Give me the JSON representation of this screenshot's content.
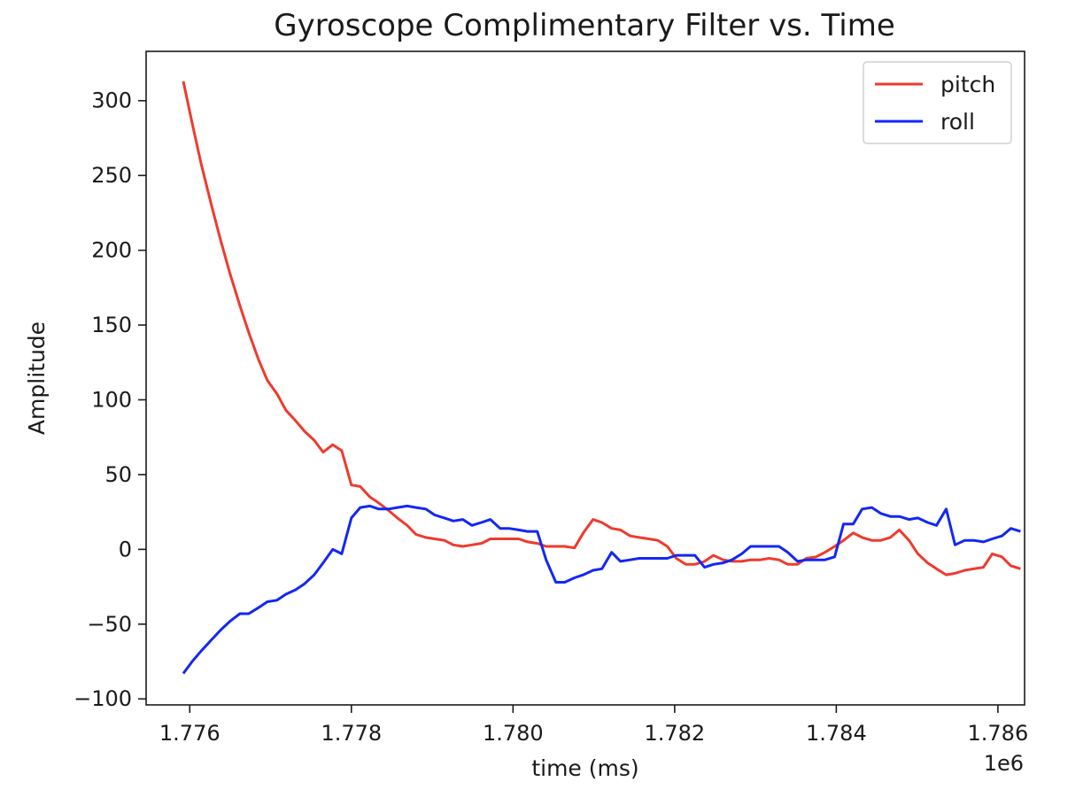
{
  "chart_data": {
    "type": "line",
    "title": "Gyroscope Complimentary Filter vs. Time",
    "xlabel": "time (ms)",
    "ylabel": "Amplitude",
    "x_offset_label": "1e6",
    "xlim": [
      1.77546,
      1.78633
    ],
    "ylim": [
      -104,
      333
    ],
    "xticks": [
      1.776,
      1.778,
      1.78,
      1.782,
      1.784,
      1.786
    ],
    "xtick_labels": [
      "1.776",
      "1.778",
      "1.780",
      "1.782",
      "1.784",
      "1.786"
    ],
    "yticks": [
      -100,
      -50,
      0,
      50,
      100,
      150,
      200,
      250,
      300
    ],
    "ytick_labels": [
      "−100",
      "−50",
      "0",
      "50",
      "100",
      "150",
      "200",
      "250",
      "300"
    ],
    "legend_position": "top-right",
    "grid": false,
    "series": [
      {
        "name": "pitch",
        "color": "#ef3a2d",
        "points": [
          [
            1.77592,
            313
          ],
          [
            1.77603,
            285
          ],
          [
            1.77614,
            258
          ],
          [
            1.77626,
            232
          ],
          [
            1.77638,
            207
          ],
          [
            1.7765,
            184
          ],
          [
            1.77662,
            163
          ],
          [
            1.77673,
            145
          ],
          [
            1.77685,
            127
          ],
          [
            1.77696,
            113
          ],
          [
            1.77708,
            104
          ],
          [
            1.77719,
            93
          ],
          [
            1.77731,
            86
          ],
          [
            1.77742,
            79
          ],
          [
            1.77754,
            73
          ],
          [
            1.77765,
            65
          ],
          [
            1.77777,
            70
          ],
          [
            1.77788,
            66
          ],
          [
            1.778,
            43
          ],
          [
            1.77811,
            42
          ],
          [
            1.77823,
            35
          ],
          [
            1.77834,
            31
          ],
          [
            1.77846,
            26
          ],
          [
            1.77857,
            21
          ],
          [
            1.77869,
            16
          ],
          [
            1.7788,
            10
          ],
          [
            1.77892,
            8
          ],
          [
            1.77903,
            7
          ],
          [
            1.77915,
            6
          ],
          [
            1.77926,
            3
          ],
          [
            1.77938,
            2
          ],
          [
            1.77949,
            3
          ],
          [
            1.77961,
            4
          ],
          [
            1.77972,
            7
          ],
          [
            1.77984,
            7
          ],
          [
            1.77995,
            7
          ],
          [
            1.78007,
            7
          ],
          [
            1.78018,
            5
          ],
          [
            1.7803,
            4
          ],
          [
            1.78041,
            2
          ],
          [
            1.78053,
            2
          ],
          [
            1.78064,
            2
          ],
          [
            1.78076,
            1
          ],
          [
            1.78087,
            11
          ],
          [
            1.78099,
            20
          ],
          [
            1.7811,
            18
          ],
          [
            1.78122,
            14
          ],
          [
            1.78133,
            13
          ],
          [
            1.78145,
            9
          ],
          [
            1.78156,
            8
          ],
          [
            1.78168,
            7
          ],
          [
            1.78179,
            6
          ],
          [
            1.78191,
            2
          ],
          [
            1.78202,
            -6
          ],
          [
            1.78214,
            -10
          ],
          [
            1.78225,
            -10
          ],
          [
            1.78237,
            -8
          ],
          [
            1.78248,
            -4
          ],
          [
            1.7826,
            -7
          ],
          [
            1.78271,
            -8
          ],
          [
            1.78283,
            -8
          ],
          [
            1.78294,
            -7
          ],
          [
            1.78306,
            -7
          ],
          [
            1.78317,
            -6
          ],
          [
            1.78329,
            -7
          ],
          [
            1.7834,
            -10
          ],
          [
            1.78352,
            -10
          ],
          [
            1.78363,
            -6
          ],
          [
            1.78375,
            -5
          ],
          [
            1.78386,
            -2
          ],
          [
            1.78398,
            2
          ],
          [
            1.78409,
            6
          ],
          [
            1.78421,
            11
          ],
          [
            1.78432,
            8
          ],
          [
            1.78444,
            6
          ],
          [
            1.78455,
            6
          ],
          [
            1.78467,
            8
          ],
          [
            1.78478,
            13
          ],
          [
            1.7849,
            6
          ],
          [
            1.78501,
            -3
          ],
          [
            1.78513,
            -9
          ],
          [
            1.78524,
            -13
          ],
          [
            1.78536,
            -17
          ],
          [
            1.78547,
            -16
          ],
          [
            1.78559,
            -14
          ],
          [
            1.7857,
            -13
          ],
          [
            1.78582,
            -12
          ],
          [
            1.78593,
            -3
          ],
          [
            1.78605,
            -5
          ],
          [
            1.78616,
            -11
          ],
          [
            1.78628,
            -13
          ]
        ]
      },
      {
        "name": "roll",
        "color": "#1327f5",
        "points": [
          [
            1.77592,
            -83
          ],
          [
            1.77603,
            -75
          ],
          [
            1.77614,
            -68
          ],
          [
            1.77626,
            -61
          ],
          [
            1.77638,
            -54
          ],
          [
            1.7765,
            -48
          ],
          [
            1.77662,
            -43
          ],
          [
            1.77673,
            -43
          ],
          [
            1.77685,
            -39
          ],
          [
            1.77696,
            -35
          ],
          [
            1.77708,
            -34
          ],
          [
            1.77719,
            -30
          ],
          [
            1.77731,
            -27
          ],
          [
            1.77742,
            -23
          ],
          [
            1.77754,
            -17
          ],
          [
            1.77765,
            -9
          ],
          [
            1.77777,
            0
          ],
          [
            1.77788,
            -3
          ],
          [
            1.778,
            21
          ],
          [
            1.77811,
            28
          ],
          [
            1.77823,
            29
          ],
          [
            1.77834,
            27
          ],
          [
            1.77846,
            27
          ],
          [
            1.77857,
            28
          ],
          [
            1.77869,
            29
          ],
          [
            1.7788,
            28
          ],
          [
            1.77892,
            27
          ],
          [
            1.77903,
            23
          ],
          [
            1.77915,
            21
          ],
          [
            1.77926,
            19
          ],
          [
            1.77938,
            20
          ],
          [
            1.77949,
            16
          ],
          [
            1.77961,
            18
          ],
          [
            1.77972,
            20
          ],
          [
            1.77984,
            14
          ],
          [
            1.77995,
            14
          ],
          [
            1.78007,
            13
          ],
          [
            1.78018,
            12
          ],
          [
            1.7803,
            12
          ],
          [
            1.78041,
            -7
          ],
          [
            1.78053,
            -22
          ],
          [
            1.78064,
            -22
          ],
          [
            1.78076,
            -19
          ],
          [
            1.78087,
            -17
          ],
          [
            1.78099,
            -14
          ],
          [
            1.7811,
            -13
          ],
          [
            1.78122,
            -2
          ],
          [
            1.78133,
            -8
          ],
          [
            1.78145,
            -7
          ],
          [
            1.78156,
            -6
          ],
          [
            1.78168,
            -6
          ],
          [
            1.78179,
            -6
          ],
          [
            1.78191,
            -6
          ],
          [
            1.78202,
            -4
          ],
          [
            1.78214,
            -4
          ],
          [
            1.78225,
            -4
          ],
          [
            1.78237,
            -12
          ],
          [
            1.78248,
            -10
          ],
          [
            1.7826,
            -9
          ],
          [
            1.78271,
            -7
          ],
          [
            1.78283,
            -3
          ],
          [
            1.78294,
            2
          ],
          [
            1.78306,
            2
          ],
          [
            1.78317,
            2
          ],
          [
            1.78329,
            2
          ],
          [
            1.7834,
            -2
          ],
          [
            1.78352,
            -8
          ],
          [
            1.78363,
            -7
          ],
          [
            1.78375,
            -7
          ],
          [
            1.78386,
            -7
          ],
          [
            1.78398,
            -5
          ],
          [
            1.78409,
            17
          ],
          [
            1.78421,
            17
          ],
          [
            1.78432,
            27
          ],
          [
            1.78444,
            28
          ],
          [
            1.78455,
            24
          ],
          [
            1.78467,
            22
          ],
          [
            1.78478,
            22
          ],
          [
            1.7849,
            20
          ],
          [
            1.78501,
            21
          ],
          [
            1.78513,
            18
          ],
          [
            1.78524,
            16
          ],
          [
            1.78536,
            27
          ],
          [
            1.78547,
            3
          ],
          [
            1.78559,
            6
          ],
          [
            1.7857,
            6
          ],
          [
            1.78582,
            5
          ],
          [
            1.78593,
            7
          ],
          [
            1.78605,
            9
          ],
          [
            1.78616,
            14
          ],
          [
            1.78628,
            12
          ]
        ]
      }
    ]
  }
}
